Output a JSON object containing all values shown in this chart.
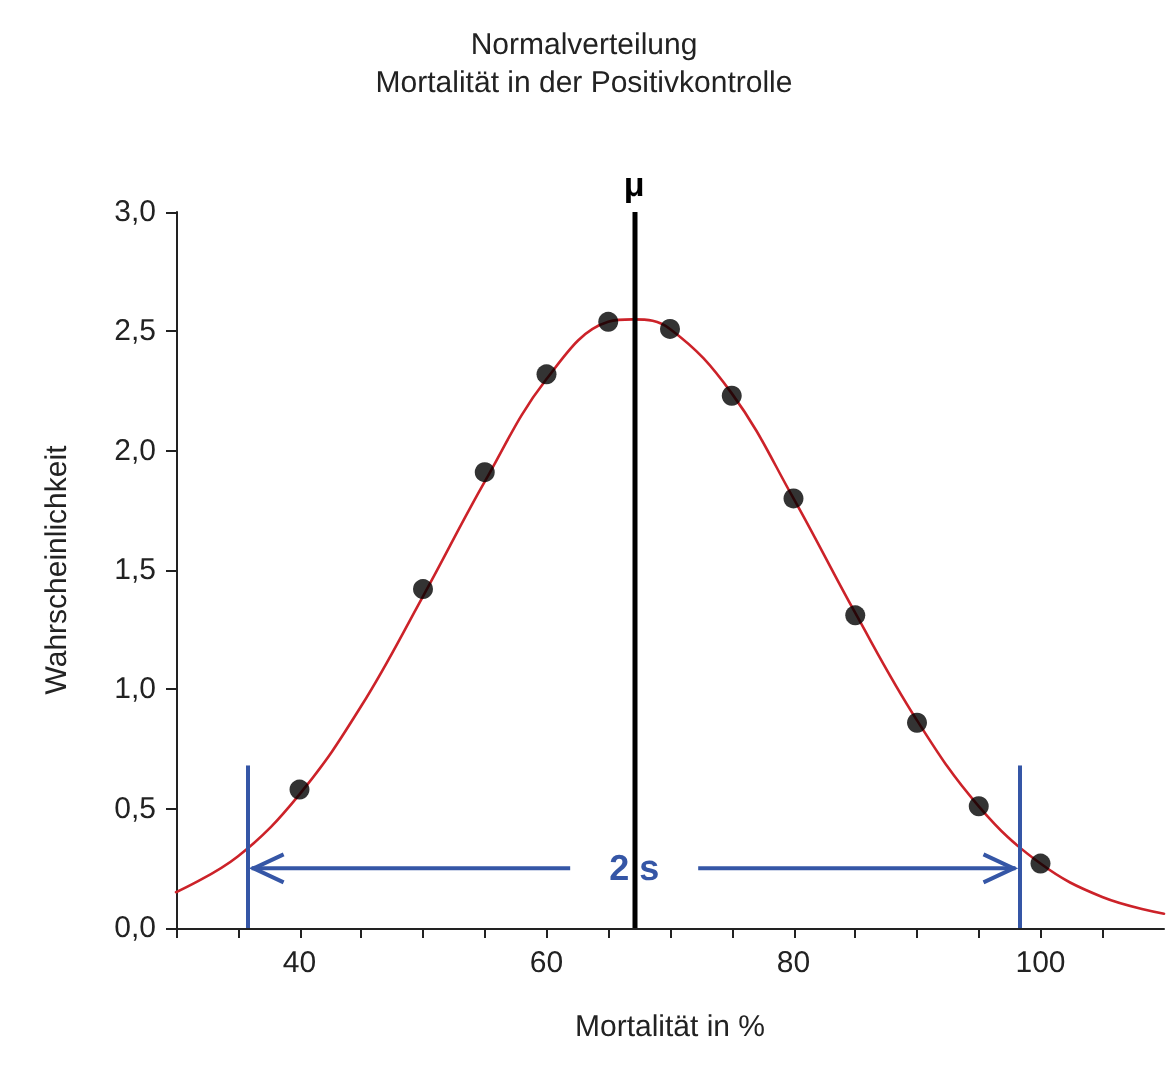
{
  "chart_data": {
    "type": "scatter",
    "title": "Normalverteilung",
    "subtitle": "Mortalität in der Positivkontrolle",
    "xlabel": "Mortalität in %",
    "ylabel": "Wahrscheinlichkeit",
    "series": [
      {
        "color": "#000000",
        "marker": "circle",
        "x": [
          40,
          50,
          55,
          60,
          65,
          70,
          75,
          80,
          85,
          90,
          95,
          100
        ],
        "values": [
          0.58,
          1.42,
          1.91,
          2.32,
          2.54,
          2.51,
          2.23,
          1.8,
          1.31,
          0.86,
          0.51,
          0.27
        ]
      },
      {
        "type": "line",
        "color": "#cc2229",
        "marker": "none",
        "line_style": "solid",
        "x": [
          30,
          35,
          40,
          45,
          50,
          55,
          60,
          65,
          67,
          70,
          75,
          80,
          85,
          90,
          95,
          100,
          105,
          110
        ],
        "values": [
          0.15,
          0.3,
          0.56,
          0.93,
          1.39,
          1.87,
          2.3,
          2.54,
          2.55,
          2.51,
          2.24,
          1.8,
          1.32,
          0.87,
          0.51,
          0.27,
          0.13,
          0.06
        ]
      }
    ],
    "xlim": [
      30,
      110
    ],
    "xticks": [
      {
        "value": 30,
        "label": null
      },
      {
        "value": 35,
        "label": null
      },
      40,
      {
        "value": 45,
        "label": null
      },
      {
        "value": 50,
        "label": null
      },
      {
        "value": 55,
        "label": null
      },
      60,
      {
        "value": 65,
        "label": null
      },
      {
        "value": 70,
        "label": null
      },
      {
        "value": 75,
        "label": null
      },
      80,
      {
        "value": 85,
        "label": null
      },
      {
        "value": 90,
        "label": null
      },
      {
        "value": 95,
        "label": null
      },
      100,
      {
        "value": 105,
        "label": null
      }
    ],
    "ylim": [
      0,
      3
    ],
    "yticks": [
      {
        "value": 0,
        "label": "0,0"
      },
      {
        "value": 0.5,
        "label": "0,5"
      },
      {
        "value": 1,
        "label": "1,0"
      },
      {
        "value": 1.5,
        "label": "1,5"
      },
      {
        "value": 2,
        "label": "2,0"
      },
      {
        "value": 2.5,
        "label": "2,5"
      },
      {
        "value": 3,
        "label": "3,0"
      }
    ],
    "ref_lines": [
      {
        "axis": "x",
        "value": 67.1,
        "label": "μ",
        "color": "#000000"
      },
      {
        "axis": "x",
        "value": 35.8,
        "color": "#3556a6"
      },
      {
        "axis": "x",
        "value": 98.3,
        "color": "#3556a6"
      }
    ],
    "annotations": [
      {
        "text": "2 s",
        "x": 67.1,
        "y": 0.25
      }
    ],
    "grid": false
  }
}
